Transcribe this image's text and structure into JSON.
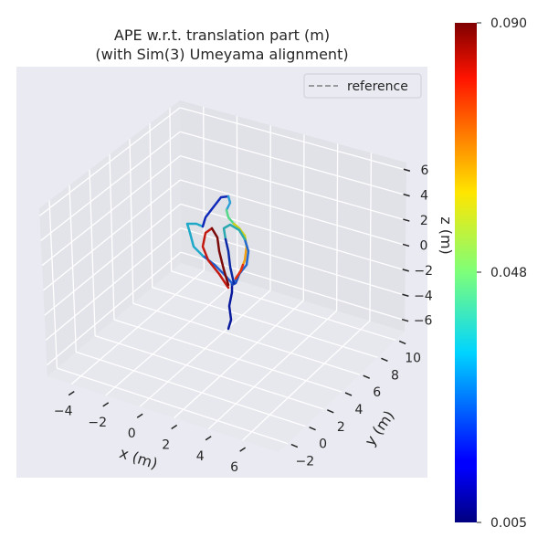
{
  "chart_data": {
    "type": "line3d",
    "title": [
      "APE w.r.t. translation part (m)",
      "(with Sim(3) Umeyama alignment)"
    ],
    "xlabel": "x (m)",
    "ylabel": "y (m)",
    "zlabel": "z (m)",
    "xticks": [
      -4,
      -2,
      0,
      2,
      4,
      6
    ],
    "yticks": [
      -2,
      0,
      2,
      4,
      6,
      8,
      10
    ],
    "zticks": [
      -6,
      -4,
      -2,
      0,
      2,
      4,
      6
    ],
    "xlim": [
      -5.4,
      8.1
    ],
    "ylim": [
      -3,
      11
    ],
    "zlim": [
      -6.9,
      6.6
    ],
    "grid": true,
    "legend": {
      "position": "top-right",
      "entries": [
        {
          "label": "reference",
          "style": "dashed",
          "color": "#7f7f7f"
        }
      ]
    },
    "colorbar": {
      "colormap": "jet",
      "min": 0.005,
      "max": 0.09,
      "ticks": [
        "0.090",
        "0.048",
        "0.005"
      ]
    },
    "background": "#eaeaf2"
  }
}
